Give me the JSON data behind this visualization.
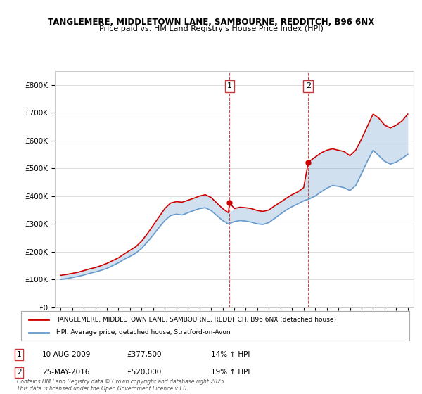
{
  "title1": "TANGLEMERE, MIDDLETOWN LANE, SAMBOURNE, REDDITCH, B96 6NX",
  "title2": "Price paid vs. HM Land Registry's House Price Index (HPI)",
  "legend1": "TANGLEMERE, MIDDLETOWN LANE, SAMBOURNE, REDDITCH, B96 6NX (detached house)",
  "legend2": "HPI: Average price, detached house, Stratford-on-Avon",
  "annotation1_label": "1",
  "annotation1_date": "10-AUG-2009",
  "annotation1_price": "£377,500",
  "annotation1_pct": "14% ↑ HPI",
  "annotation2_label": "2",
  "annotation2_date": "25-MAY-2016",
  "annotation2_price": "£520,000",
  "annotation2_pct": "19% ↑ HPI",
  "footer": "Contains HM Land Registry data © Crown copyright and database right 2025.\nThis data is licensed under the Open Government Licence v3.0.",
  "vline1_x": 2009.6,
  "vline2_x": 2016.4,
  "red_color": "#cc0000",
  "blue_color": "#6699cc",
  "background_color": "#ffffff",
  "grid_color": "#dddddd",
  "ylim_min": 0,
  "ylim_max": 850000,
  "xlim_min": 1994.5,
  "xlim_max": 2025.5,
  "red_data": {
    "years": [
      1995,
      1995.5,
      1996,
      1996.5,
      1997,
      1997.5,
      1998,
      1998.5,
      1999,
      1999.5,
      2000,
      2000.5,
      2001,
      2001.5,
      2002,
      2002.5,
      2003,
      2003.5,
      2004,
      2004.5,
      2005,
      2005.5,
      2006,
      2006.5,
      2007,
      2007.5,
      2008,
      2008.5,
      2009,
      2009.5,
      2009.6,
      2010,
      2010.5,
      2011,
      2011.5,
      2012,
      2012.5,
      2013,
      2013.5,
      2014,
      2014.5,
      2015,
      2015.5,
      2016,
      2016.4,
      2016.5,
      2017,
      2017.5,
      2018,
      2018.5,
      2019,
      2019.5,
      2020,
      2020.5,
      2021,
      2021.5,
      2022,
      2022.5,
      2023,
      2023.5,
      2024,
      2024.5,
      2025
    ],
    "values": [
      115000,
      118000,
      122000,
      126000,
      132000,
      138000,
      143000,
      150000,
      158000,
      168000,
      178000,
      192000,
      205000,
      218000,
      238000,
      265000,
      295000,
      325000,
      355000,
      375000,
      380000,
      378000,
      385000,
      392000,
      400000,
      405000,
      395000,
      375000,
      355000,
      340000,
      377500,
      355000,
      360000,
      358000,
      355000,
      348000,
      345000,
      350000,
      365000,
      378000,
      392000,
      405000,
      415000,
      430000,
      520000,
      525000,
      540000,
      555000,
      565000,
      570000,
      565000,
      560000,
      545000,
      565000,
      605000,
      650000,
      695000,
      680000,
      655000,
      645000,
      655000,
      670000,
      695000
    ]
  },
  "blue_data": {
    "years": [
      1995,
      1995.5,
      1996,
      1996.5,
      1997,
      1997.5,
      1998,
      1998.5,
      1999,
      1999.5,
      2000,
      2000.5,
      2001,
      2001.5,
      2002,
      2002.5,
      2003,
      2003.5,
      2004,
      2004.5,
      2005,
      2005.5,
      2006,
      2006.5,
      2007,
      2007.5,
      2008,
      2008.5,
      2009,
      2009.5,
      2010,
      2010.5,
      2011,
      2011.5,
      2012,
      2012.5,
      2013,
      2013.5,
      2014,
      2014.5,
      2015,
      2015.5,
      2016,
      2016.5,
      2017,
      2017.5,
      2018,
      2018.5,
      2019,
      2019.5,
      2020,
      2020.5,
      2021,
      2021.5,
      2022,
      2022.5,
      2023,
      2023.5,
      2024,
      2024.5,
      2025
    ],
    "values": [
      100000,
      103000,
      107000,
      111000,
      116000,
      122000,
      127000,
      133000,
      140000,
      150000,
      160000,
      173000,
      183000,
      195000,
      212000,
      235000,
      260000,
      287000,
      312000,
      330000,
      335000,
      332000,
      340000,
      348000,
      355000,
      358000,
      348000,
      330000,
      312000,
      300000,
      308000,
      312000,
      310000,
      306000,
      300000,
      298000,
      305000,
      320000,
      335000,
      350000,
      362000,
      372000,
      383000,
      390000,
      400000,
      415000,
      428000,
      438000,
      435000,
      430000,
      420000,
      438000,
      480000,
      525000,
      565000,
      545000,
      525000,
      515000,
      522000,
      535000,
      550000
    ]
  }
}
